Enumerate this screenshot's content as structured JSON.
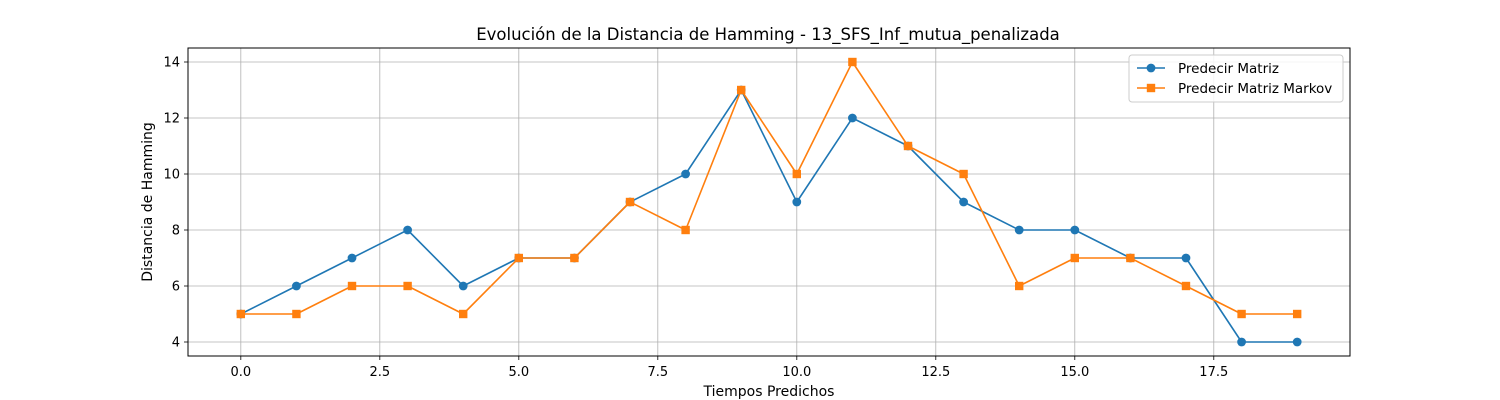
{
  "chart_data": {
    "type": "line",
    "title": "Evolución de la Distancia de Hamming - 13_SFS_Inf_mutua_penalizada",
    "xlabel": "Tiempos Predichos",
    "ylabel": "Distancia de Hamming",
    "x": [
      0,
      1,
      2,
      3,
      4,
      5,
      6,
      7,
      8,
      9,
      10,
      11,
      12,
      13,
      14,
      15,
      16,
      17,
      18,
      19
    ],
    "xlim": [
      -0.95,
      19.95
    ],
    "ylim": [
      3.5,
      14.5
    ],
    "xticks": [
      0.0,
      2.5,
      5.0,
      7.5,
      10.0,
      12.5,
      15.0,
      17.5
    ],
    "xtick_labels": [
      "0.0",
      "2.5",
      "5.0",
      "7.5",
      "10.0",
      "12.5",
      "15.0",
      "17.5"
    ],
    "yticks": [
      4,
      6,
      8,
      10,
      12,
      14
    ],
    "ytick_labels": [
      "4",
      "6",
      "8",
      "10",
      "12",
      "14"
    ],
    "grid": true,
    "legend_position": "top-right",
    "series": [
      {
        "name": "Predecir Matriz",
        "color": "#1f77b4",
        "marker": "circle",
        "values": [
          5,
          6,
          7,
          8,
          6,
          7,
          7,
          9,
          10,
          13,
          9,
          12,
          11,
          9,
          8,
          8,
          7,
          7,
          4,
          4
        ]
      },
      {
        "name": "Predecir Matriz Markov",
        "color": "#ff7f0e",
        "marker": "square",
        "values": [
          5,
          5,
          6,
          6,
          5,
          7,
          7,
          9,
          8,
          13,
          10,
          14,
          11,
          10,
          6,
          7,
          7,
          6,
          5,
          5
        ]
      }
    ]
  }
}
